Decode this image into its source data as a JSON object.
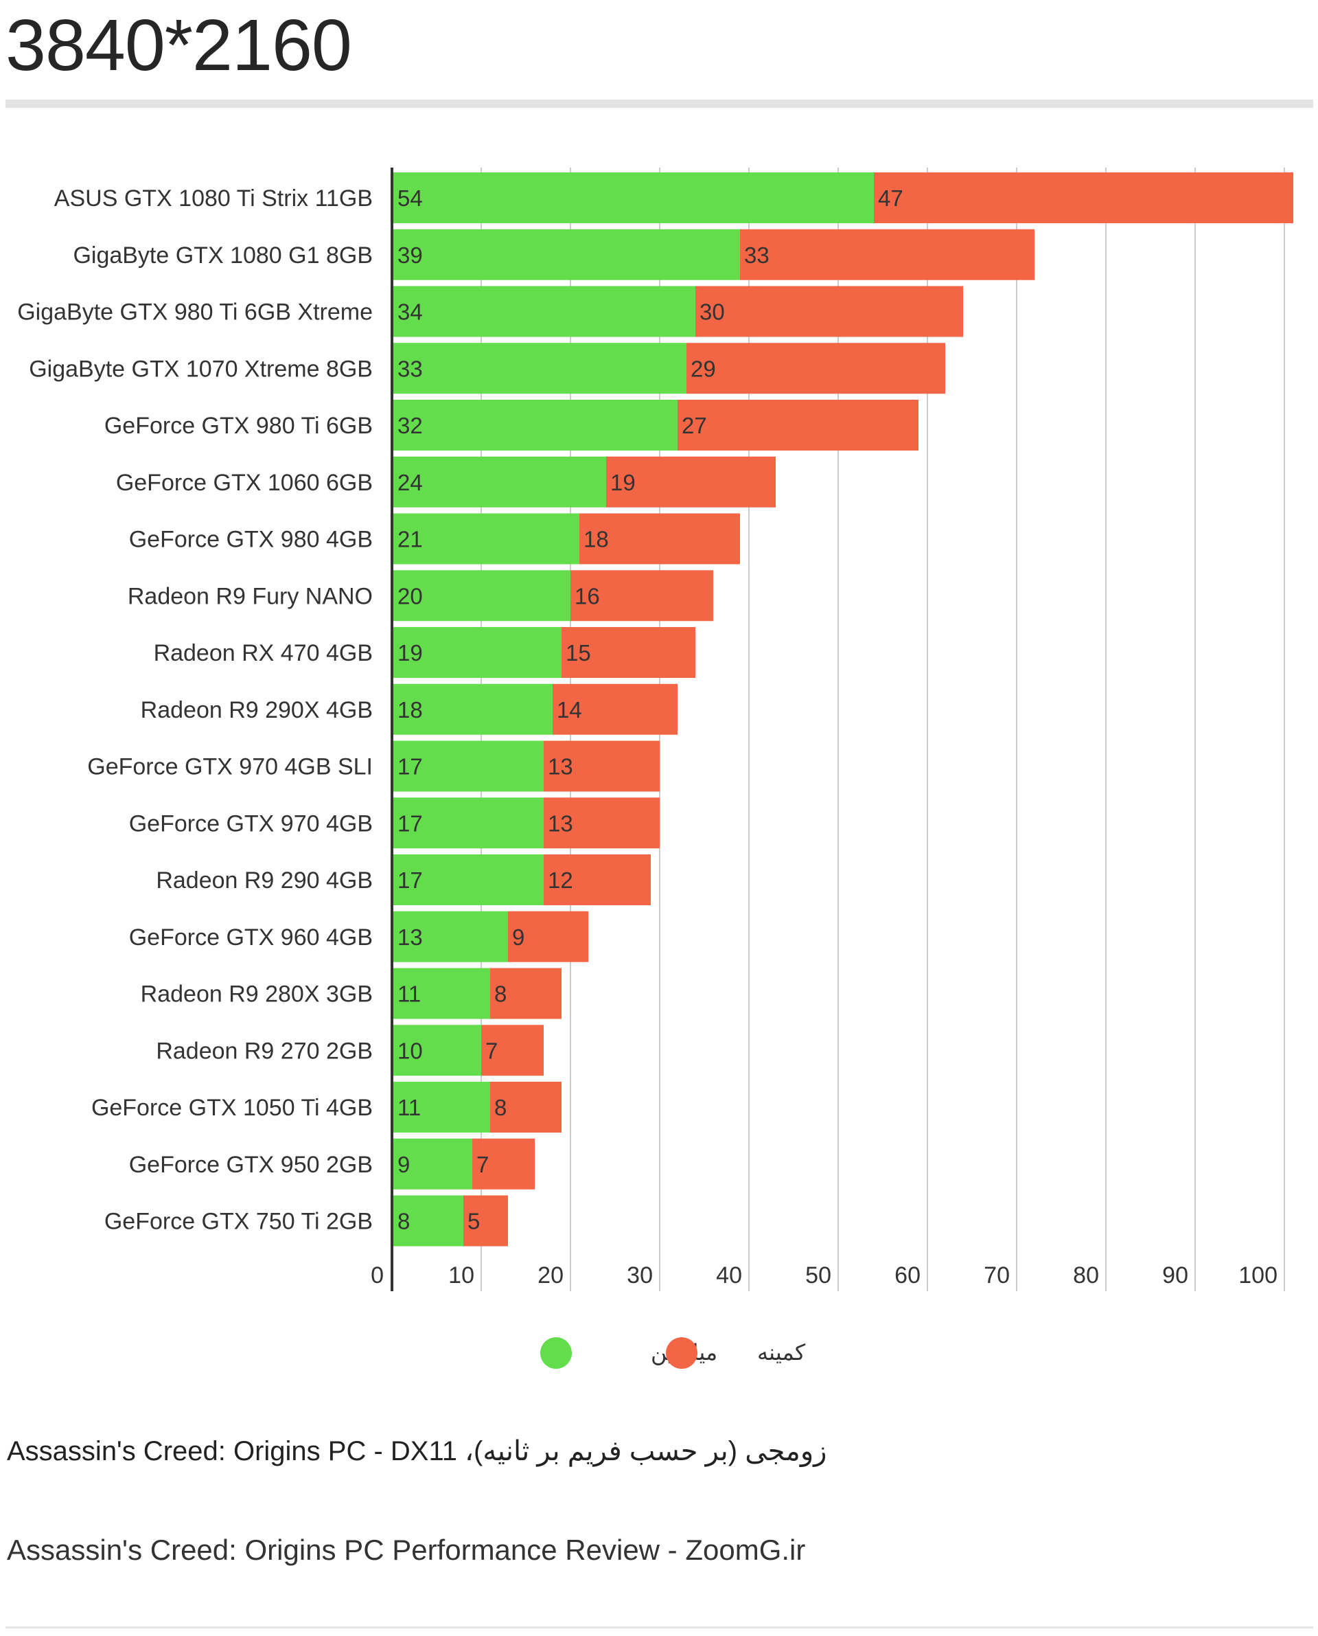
{
  "page": {
    "title": "3840*2160",
    "caption": "زومجی (بر حسب فریم بر ثانیه)، Assassin's Creed: Origins PC -  DX11",
    "source": "Assassin's Creed: Origins PC Performance Review - ZoomG.ir"
  },
  "colors": {
    "average": "#63dd4b",
    "minimum": "#f26545",
    "grid": "#cccccc",
    "axis": "#333333"
  },
  "chart_data": {
    "type": "bar",
    "orientation": "horizontal",
    "stacked": true,
    "categories": [
      "ASUS GTX 1080 Ti Strix 11GB",
      "GigaByte GTX 1080 G1 8GB",
      "GigaByte GTX 980 Ti 6GB Xtreme",
      "GigaByte GTX 1070 Xtreme 8GB",
      "GeForce GTX 980 Ti 6GB",
      "GeForce GTX 1060 6GB",
      "GeForce GTX 980 4GB",
      "Radeon R9 Fury NANO",
      "Radeon RX 470 4GB",
      "Radeon R9 290X 4GB",
      "GeForce GTX 970 4GB SLI",
      "GeForce GTX 970 4GB",
      "Radeon R9 290 4GB",
      "GeForce GTX 960 4GB",
      "Radeon R9 280X 3GB",
      "Radeon R9 270 2GB",
      "GeForce GTX 1050 Ti 4GB",
      "GeForce GTX 950 2GB",
      "GeForce GTX 750 Ti 2GB"
    ],
    "series": [
      {
        "name": "میانگین",
        "values": [
          54,
          39,
          34,
          33,
          32,
          24,
          21,
          20,
          19,
          18,
          17,
          17,
          17,
          13,
          11,
          10,
          11,
          9,
          8
        ]
      },
      {
        "name": "کمینه",
        "values": [
          47,
          33,
          30,
          29,
          27,
          19,
          18,
          16,
          15,
          14,
          13,
          13,
          12,
          9,
          8,
          7,
          8,
          7,
          5
        ]
      }
    ],
    "xlim": [
      0,
      100
    ],
    "xticks": [
      0,
      10,
      20,
      30,
      40,
      50,
      60,
      70,
      80,
      90,
      100
    ],
    "grid": true,
    "legend_position": "bottom"
  }
}
